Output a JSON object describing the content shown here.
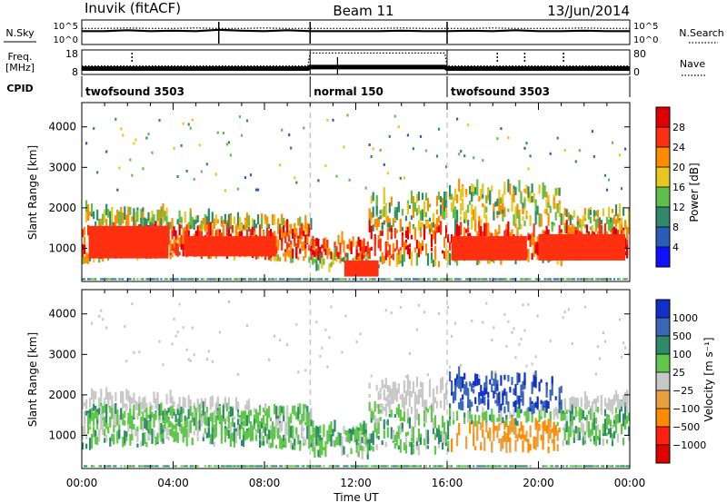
{
  "header": {
    "station": "Inuvik (fitACF)",
    "beam": "Beam 11",
    "date": "13/Jun/2014"
  },
  "colors": {
    "power_scale": [
      "#1010ff",
      "#2a5db8",
      "#2e8a6a",
      "#5fbf4a",
      "#e8c820",
      "#ff8c00",
      "#ff3010",
      "#e00000"
    ],
    "velocity_scale": [
      "#1030c8",
      "#3a66b8",
      "#2e8a6a",
      "#5fc84a",
      "#c8c8c8",
      "#e8a040",
      "#ff8c00",
      "#ff2010",
      "#e00000"
    ]
  },
  "chart_data": [
    {
      "type": "line",
      "panel": "noise",
      "left_label": "N.Sky",
      "right_label": "N.Search",
      "left_ticks": [
        "10^5",
        "10^0"
      ],
      "right_ticks": [
        "10^5",
        "10^0"
      ],
      "series": [
        {
          "values": [
            [
              0.0,
              3
            ],
            [
              1.0,
              3
            ],
            [
              2.0,
              3.2
            ],
            [
              3.0,
              3
            ],
            [
              4.0,
              3.1
            ],
            [
              5.0,
              3
            ],
            [
              6.0,
              3.3
            ],
            [
              7.0,
              3.1
            ],
            [
              8.0,
              3
            ],
            [
              9.0,
              3.2
            ],
            [
              10.0,
              3
            ],
            [
              11.0,
              3
            ],
            [
              12.0,
              3
            ],
            [
              13.0,
              3
            ],
            [
              14.0,
              3.1
            ],
            [
              15.0,
              3
            ],
            [
              16.0,
              3
            ],
            [
              17.0,
              3.1
            ],
            [
              18.0,
              3
            ],
            [
              19.0,
              3.2
            ],
            [
              20.0,
              3
            ],
            [
              21.0,
              3
            ],
            [
              22.0,
              3.1
            ],
            [
              23.0,
              3
            ],
            [
              24.0,
              3
            ]
          ]
        },
        {
          "values": [
            [
              0.0,
              3.6
            ],
            [
              1.0,
              3.6
            ],
            [
              2.0,
              3.7
            ],
            [
              3.0,
              3.6
            ],
            [
              4.0,
              3.6
            ],
            [
              5.0,
              3.7
            ],
            [
              6.0,
              3.6
            ],
            [
              7.0,
              3.6
            ],
            [
              8.0,
              3.7
            ],
            [
              9.0,
              3.6
            ],
            [
              10.0,
              3.6
            ],
            [
              11.0,
              3.6
            ],
            [
              12.0,
              3.6
            ],
            [
              13.0,
              3.6
            ],
            [
              14.0,
              3.7
            ],
            [
              15.0,
              3.6
            ],
            [
              16.0,
              3.6
            ],
            [
              17.0,
              3.6
            ],
            [
              18.0,
              3.7
            ],
            [
              19.0,
              3.6
            ],
            [
              20.0,
              3.6
            ],
            [
              21.0,
              3.6
            ],
            [
              22.0,
              3.7
            ],
            [
              23.0,
              3.6
            ],
            [
              24.0,
              3.6
            ]
          ]
        }
      ]
    },
    {
      "type": "line",
      "panel": "frequency",
      "left_label": "Freq.",
      "left_unit": "[MHz]",
      "right_label": "Nave",
      "left_ticks": [
        "18",
        "8"
      ],
      "right_ticks": [
        "80",
        "0"
      ],
      "series": [
        {
          "values": [
            [
              0.0,
              10.4
            ],
            [
              2.0,
              10.4
            ],
            [
              4.0,
              10.4
            ],
            [
              6.0,
              10.4
            ],
            [
              8.0,
              10.4
            ],
            [
              9.9,
              10.4
            ],
            [
              10.0,
              11.0
            ],
            [
              12.0,
              11.0
            ],
            [
              14.0,
              11.0
            ],
            [
              15.9,
              11.0
            ],
            [
              16.0,
              10.4
            ],
            [
              18.0,
              10.4
            ],
            [
              20.0,
              10.4
            ],
            [
              22.0,
              10.4
            ],
            [
              24.0,
              10.4
            ]
          ]
        },
        {
          "values": [
            [
              0.0,
              28
            ],
            [
              9.9,
              28
            ],
            [
              10.0,
              70
            ],
            [
              15.9,
              70
            ],
            [
              16.0,
              28
            ],
            [
              24.0,
              28
            ]
          ]
        }
      ],
      "cpid_label": "CPID",
      "cpid_segments": [
        {
          "label": "twofsound 3503",
          "start": 0,
          "end": 10
        },
        {
          "label": "normal 150",
          "start": 10,
          "end": 16
        },
        {
          "label": "twofsound 3503",
          "start": 16,
          "end": 24
        }
      ]
    },
    {
      "type": "heatmap",
      "panel": "power",
      "ylabel": "Slant Range [km]",
      "ylim": [
        180,
        4600
      ],
      "xlim": [
        0,
        24
      ],
      "y_ticks": [
        "1000",
        "2000",
        "3000",
        "4000"
      ],
      "colorbar": {
        "label": "Power [dB]",
        "range": [
          0,
          32
        ],
        "ticks": [
          "4",
          "8",
          "12",
          "16",
          "20",
          "24",
          "28"
        ]
      },
      "mode_boundaries": [
        10,
        16
      ]
    },
    {
      "type": "heatmap",
      "panel": "velocity",
      "ylabel": "Slant Range [km]",
      "xlabel": "Time UT",
      "ylim": [
        180,
        4600
      ],
      "xlim": [
        0,
        24
      ],
      "x_ticks": [
        "00:00",
        "04:00",
        "08:00",
        "12:00",
        "16:00",
        "20:00",
        "00:00"
      ],
      "y_ticks": [
        "1000",
        "2000",
        "3000",
        "4000"
      ],
      "colorbar": {
        "label": "Velocity [m s⁻¹]",
        "ticks": [
          "1000",
          "500",
          "100",
          "25",
          "−25",
          "−100",
          "−500",
          "−1000"
        ]
      },
      "mode_boundaries": [
        10,
        16
      ]
    }
  ]
}
